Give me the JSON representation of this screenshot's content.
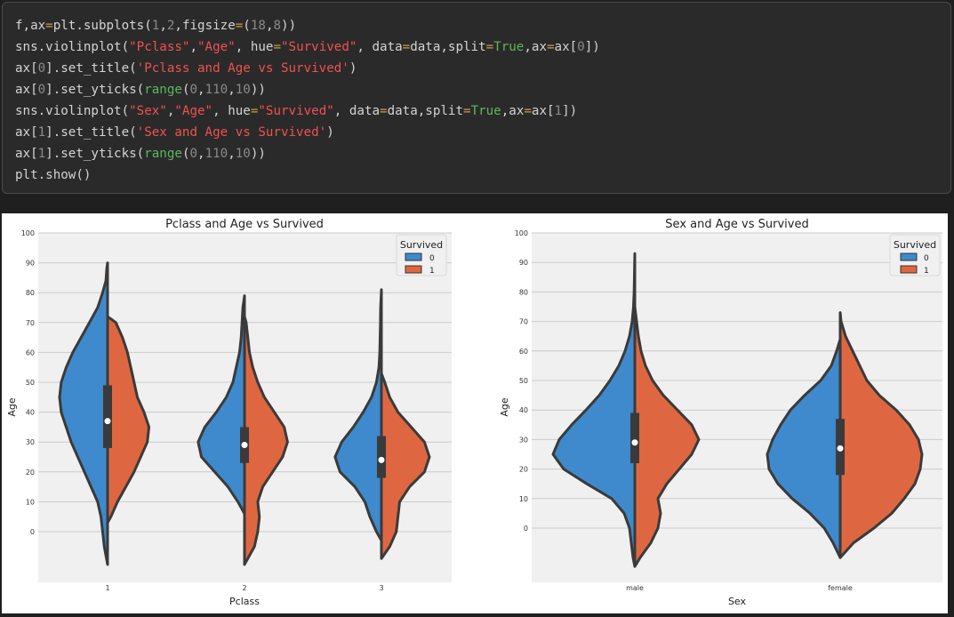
{
  "code": {
    "lines": [
      [
        [
          "f,ax",
          "fun"
        ],
        [
          "=",
          "eq"
        ],
        [
          "plt.subplots(",
          "fun"
        ],
        [
          "1",
          "num"
        ],
        [
          ",",
          "fun"
        ],
        [
          "2",
          "num"
        ],
        [
          ",figsize",
          "fun"
        ],
        [
          "=",
          "eq"
        ],
        [
          "(",
          "fun"
        ],
        [
          "18",
          "num"
        ],
        [
          ",",
          "fun"
        ],
        [
          "8",
          "num"
        ],
        [
          "))",
          "fun"
        ]
      ],
      [
        [
          "sns.violinplot(",
          "fun"
        ],
        [
          "\"Pclass\"",
          "str"
        ],
        [
          ",",
          "fun"
        ],
        [
          "\"Age\"",
          "str"
        ],
        [
          ", hue",
          "fun"
        ],
        [
          "=",
          "eq"
        ],
        [
          "\"Survived\"",
          "str"
        ],
        [
          ", data",
          "fun"
        ],
        [
          "=",
          "eq"
        ],
        [
          "data,split",
          "fun"
        ],
        [
          "=",
          "eq"
        ],
        [
          "True",
          "grn"
        ],
        [
          ",ax",
          "fun"
        ],
        [
          "=",
          "eq"
        ],
        [
          "ax[",
          "fun"
        ],
        [
          "0",
          "num"
        ],
        [
          "])",
          "fun"
        ]
      ],
      [
        [
          "ax[",
          "fun"
        ],
        [
          "0",
          "num"
        ],
        [
          "].set_title(",
          "fun"
        ],
        [
          "'Pclass and Age vs Survived'",
          "str"
        ],
        [
          ")",
          "fun"
        ]
      ],
      [
        [
          "ax[",
          "fun"
        ],
        [
          "0",
          "num"
        ],
        [
          "].set_yticks(",
          "fun"
        ],
        [
          "range",
          "grn"
        ],
        [
          "(",
          "fun"
        ],
        [
          "0",
          "num"
        ],
        [
          ",",
          "fun"
        ],
        [
          "110",
          "num"
        ],
        [
          ",",
          "fun"
        ],
        [
          "10",
          "num"
        ],
        [
          "))",
          "fun"
        ]
      ],
      [
        [
          "sns.violinplot(",
          "fun"
        ],
        [
          "\"Sex\"",
          "str"
        ],
        [
          ",",
          "fun"
        ],
        [
          "\"Age\"",
          "str"
        ],
        [
          ", hue",
          "fun"
        ],
        [
          "=",
          "eq"
        ],
        [
          "\"Survived\"",
          "str"
        ],
        [
          ", data",
          "fun"
        ],
        [
          "=",
          "eq"
        ],
        [
          "data,split",
          "fun"
        ],
        [
          "=",
          "eq"
        ],
        [
          "True",
          "grn"
        ],
        [
          ",ax",
          "fun"
        ],
        [
          "=",
          "eq"
        ],
        [
          "ax[",
          "fun"
        ],
        [
          "1",
          "num"
        ],
        [
          "])",
          "fun"
        ]
      ],
      [
        [
          "ax[",
          "fun"
        ],
        [
          "1",
          "num"
        ],
        [
          "].set_title(",
          "fun"
        ],
        [
          "'Sex and Age vs Survived'",
          "str"
        ],
        [
          ")",
          "fun"
        ]
      ],
      [
        [
          "ax[",
          "fun"
        ],
        [
          "1",
          "num"
        ],
        [
          "].set_yticks(",
          "fun"
        ],
        [
          "range",
          "grn"
        ],
        [
          "(",
          "fun"
        ],
        [
          "0",
          "num"
        ],
        [
          ",",
          "fun"
        ],
        [
          "110",
          "num"
        ],
        [
          ",",
          "fun"
        ],
        [
          "10",
          "num"
        ],
        [
          "))",
          "fun"
        ]
      ],
      [
        [
          "plt.show()",
          "fun"
        ]
      ]
    ]
  },
  "chart_data": [
    {
      "type": "violin",
      "title": "Pclass and Age vs Survived",
      "xlabel": "Pclass",
      "ylabel": "Age",
      "categories": [
        "1",
        "2",
        "3"
      ],
      "yticks": [
        0,
        10,
        20,
        30,
        40,
        50,
        60,
        70,
        80,
        90,
        100
      ],
      "ylim": [
        -17,
        103
      ],
      "grid": true,
      "legend": {
        "title": "Survived",
        "position": "top-right",
        "entries": [
          "0",
          "1"
        ]
      },
      "series_colors": {
        "0": "#3e8acc",
        "1": "#de6741"
      },
      "violins": [
        {
          "category": "1",
          "median": 37,
          "q1": 28,
          "q3": 49,
          "left_profile": [
            [
              -11,
              0
            ],
            [
              -5,
              2
            ],
            [
              0,
              3
            ],
            [
              5,
              4
            ],
            [
              10,
              6
            ],
            [
              15,
              10
            ],
            [
              20,
              14
            ],
            [
              25,
              18
            ],
            [
              30,
              22
            ],
            [
              35,
              25
            ],
            [
              40,
              28
            ],
            [
              45,
              29
            ],
            [
              50,
              28
            ],
            [
              55,
              25
            ],
            [
              60,
              21
            ],
            [
              65,
              16
            ],
            [
              70,
              11
            ],
            [
              75,
              6
            ],
            [
              80,
              3
            ],
            [
              84,
              1
            ],
            [
              88,
              0.5
            ],
            [
              90,
              0
            ]
          ],
          "right_profile": [
            [
              3,
              0
            ],
            [
              5,
              2
            ],
            [
              10,
              6
            ],
            [
              15,
              11
            ],
            [
              20,
              16
            ],
            [
              25,
              20
            ],
            [
              30,
              24
            ],
            [
              35,
              25
            ],
            [
              40,
              22
            ],
            [
              45,
              18
            ],
            [
              50,
              16
            ],
            [
              55,
              14
            ],
            [
              60,
              12
            ],
            [
              65,
              9
            ],
            [
              70,
              5
            ],
            [
              72,
              0
            ]
          ]
        },
        {
          "category": "2",
          "median": 29,
          "q1": 23,
          "q3": 35,
          "left_profile": [
            [
              6,
              0
            ],
            [
              10,
              4
            ],
            [
              15,
              10
            ],
            [
              20,
              18
            ],
            [
              25,
              26
            ],
            [
              30,
              28
            ],
            [
              35,
              24
            ],
            [
              40,
              17
            ],
            [
              45,
              11
            ],
            [
              50,
              7
            ],
            [
              55,
              5
            ],
            [
              60,
              3
            ],
            [
              65,
              2
            ],
            [
              70,
              1.5
            ],
            [
              75,
              1
            ],
            [
              79,
              0
            ]
          ],
          "right_profile": [
            [
              -11,
              0
            ],
            [
              -8,
              3
            ],
            [
              -5,
              6
            ],
            [
              0,
              8
            ],
            [
              5,
              9
            ],
            [
              10,
              8
            ],
            [
              15,
              11
            ],
            [
              20,
              17
            ],
            [
              25,
              23
            ],
            [
              30,
              26
            ],
            [
              35,
              24
            ],
            [
              40,
              18
            ],
            [
              45,
              12
            ],
            [
              50,
              8
            ],
            [
              55,
              5
            ],
            [
              60,
              3
            ],
            [
              65,
              2
            ],
            [
              70,
              1
            ],
            [
              72,
              0
            ]
          ]
        },
        {
          "category": "3",
          "median": 24,
          "q1": 18,
          "q3": 32,
          "left_profile": [
            [
              -3,
              0
            ],
            [
              0,
              3
            ],
            [
              5,
              7
            ],
            [
              10,
              10
            ],
            [
              15,
              16
            ],
            [
              20,
              25
            ],
            [
              25,
              28
            ],
            [
              30,
              24
            ],
            [
              35,
              17
            ],
            [
              40,
              11
            ],
            [
              45,
              6
            ],
            [
              50,
              3
            ],
            [
              55,
              1.5
            ],
            [
              60,
              1
            ],
            [
              65,
              0.8
            ],
            [
              70,
              0.6
            ],
            [
              75,
              0.5
            ],
            [
              81,
              0
            ]
          ],
          "right_profile": [
            [
              -9,
              0
            ],
            [
              -5,
              5
            ],
            [
              0,
              9
            ],
            [
              5,
              10
            ],
            [
              10,
              11
            ],
            [
              15,
              17
            ],
            [
              20,
              26
            ],
            [
              25,
              29
            ],
            [
              30,
              26
            ],
            [
              35,
              18
            ],
            [
              40,
              10
            ],
            [
              45,
              5
            ],
            [
              50,
              2
            ],
            [
              53,
              0
            ]
          ]
        }
      ]
    },
    {
      "type": "violin",
      "title": "Sex and Age vs Survived",
      "xlabel": "Sex",
      "ylabel": "Age",
      "categories": [
        "male",
        "female"
      ],
      "yticks": [
        0,
        10,
        20,
        30,
        40,
        50,
        60,
        70,
        80,
        90,
        100
      ],
      "ylim": [
        -19,
        103
      ],
      "grid": true,
      "legend": {
        "title": "Survived",
        "position": "top-right",
        "entries": [
          "0",
          "1"
        ]
      },
      "series_colors": {
        "0": "#3e8acc",
        "1": "#de6741"
      },
      "violins": [
        {
          "category": "male",
          "median": 29,
          "q1": 22,
          "q3": 39,
          "left_profile": [
            [
              -13,
              0
            ],
            [
              -10,
              2
            ],
            [
              -5,
              4
            ],
            [
              0,
              6
            ],
            [
              5,
              12
            ],
            [
              10,
              26
            ],
            [
              15,
              54
            ],
            [
              20,
              80
            ],
            [
              25,
              92
            ],
            [
              30,
              85
            ],
            [
              35,
              71
            ],
            [
              40,
              55
            ],
            [
              45,
              40
            ],
            [
              50,
              28
            ],
            [
              55,
              18
            ],
            [
              60,
              11
            ],
            [
              65,
              6
            ],
            [
              70,
              3
            ],
            [
              75,
              1.5
            ],
            [
              80,
              0.8
            ],
            [
              85,
              0.5
            ],
            [
              93,
              0
            ]
          ],
          "right_profile": [
            [
              -13,
              0
            ],
            [
              -10,
              6
            ],
            [
              -5,
              18
            ],
            [
              0,
              26
            ],
            [
              5,
              29
            ],
            [
              10,
              26
            ],
            [
              15,
              36
            ],
            [
              20,
              50
            ],
            [
              25,
              64
            ],
            [
              30,
              72
            ],
            [
              35,
              64
            ],
            [
              40,
              48
            ],
            [
              45,
              32
            ],
            [
              50,
              20
            ],
            [
              55,
              12
            ],
            [
              60,
              7
            ],
            [
              65,
              4
            ],
            [
              70,
              2
            ],
            [
              75,
              0
            ]
          ]
        },
        {
          "category": "female",
          "median": 27,
          "q1": 18,
          "q3": 37,
          "left_profile": [
            [
              -10,
              0
            ],
            [
              -5,
              8
            ],
            [
              0,
              18
            ],
            [
              5,
              34
            ],
            [
              10,
              54
            ],
            [
              15,
              70
            ],
            [
              20,
              80
            ],
            [
              25,
              82
            ],
            [
              30,
              76
            ],
            [
              35,
              67
            ],
            [
              40,
              56
            ],
            [
              45,
              40
            ],
            [
              50,
              22
            ],
            [
              55,
              10
            ],
            [
              60,
              4
            ],
            [
              64,
              0
            ]
          ],
          "right_profile": [
            [
              -10,
              0
            ],
            [
              -5,
              15
            ],
            [
              0,
              38
            ],
            [
              5,
              58
            ],
            [
              10,
              72
            ],
            [
              15,
              84
            ],
            [
              20,
              90
            ],
            [
              25,
              92
            ],
            [
              30,
              88
            ],
            [
              35,
              78
            ],
            [
              40,
              63
            ],
            [
              45,
              44
            ],
            [
              50,
              30
            ],
            [
              55,
              22
            ],
            [
              60,
              14
            ],
            [
              65,
              6
            ],
            [
              70,
              1
            ],
            [
              73,
              0
            ]
          ]
        }
      ]
    }
  ]
}
